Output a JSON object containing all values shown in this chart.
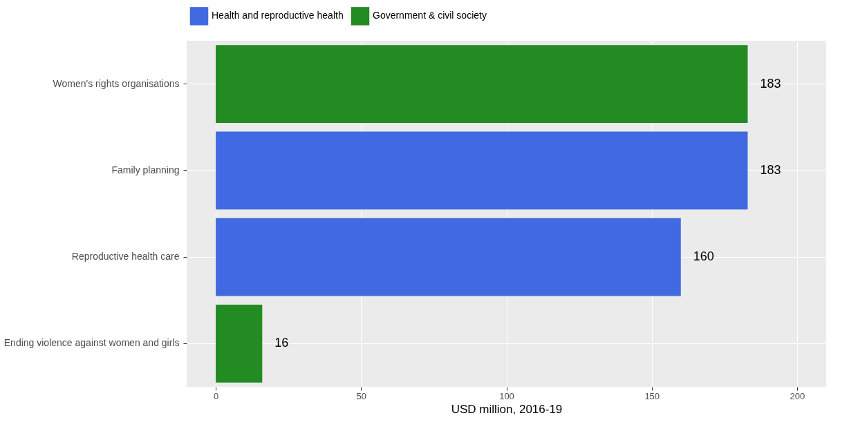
{
  "chart_data": {
    "type": "bar",
    "orientation": "horizontal",
    "xlabel": "USD million, 2016-19",
    "categories": [
      "Women's rights organisations",
      "Family planning",
      "Reproductive health care",
      "Ending violence against women and girls"
    ],
    "series": [
      {
        "name": "Health and reproductive health",
        "color": "#4169e1",
        "values": [
          null,
          183,
          160,
          null
        ]
      },
      {
        "name": "Government & civil society",
        "color": "#228b22",
        "values": [
          183,
          null,
          null,
          16
        ]
      }
    ],
    "xlim": [
      -10,
      210
    ],
    "xticks": [
      0,
      50,
      100,
      150,
      200
    ],
    "grid": true,
    "legend": "top",
    "data_labels": true
  }
}
